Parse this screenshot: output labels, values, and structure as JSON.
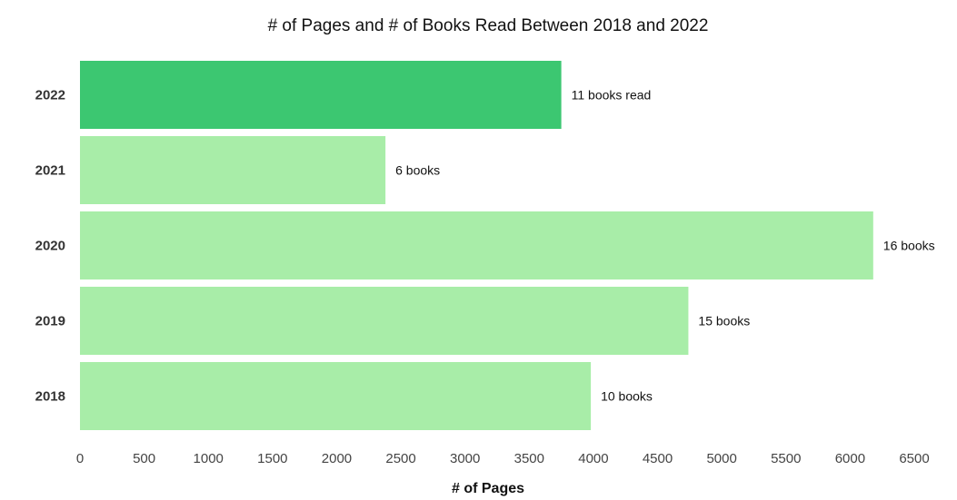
{
  "chart_data": {
    "type": "bar",
    "orientation": "horizontal",
    "title": "# of Pages and # of Books Read Between 2018 and 2022",
    "xlabel": "# of Pages",
    "ylabel": "",
    "categories": [
      "2022",
      "2021",
      "2020",
      "2019",
      "2018"
    ],
    "values": [
      3750,
      2380,
      6180,
      4740,
      3980
    ],
    "data_labels": [
      "11 books read",
      "6 books",
      "16 books",
      "15 books",
      "10 books"
    ],
    "bar_colors": [
      "#3cc771",
      "#a8eda8",
      "#a8eda8",
      "#a8eda8",
      "#a8eda8"
    ],
    "xlim": [
      0,
      6500
    ],
    "xticks": [
      "0",
      "500",
      "1000",
      "1500",
      "2000",
      "2500",
      "3000",
      "3500",
      "4000",
      "4500",
      "5000",
      "5500",
      "6000",
      "6500"
    ],
    "grid": false,
    "legend": "none"
  }
}
